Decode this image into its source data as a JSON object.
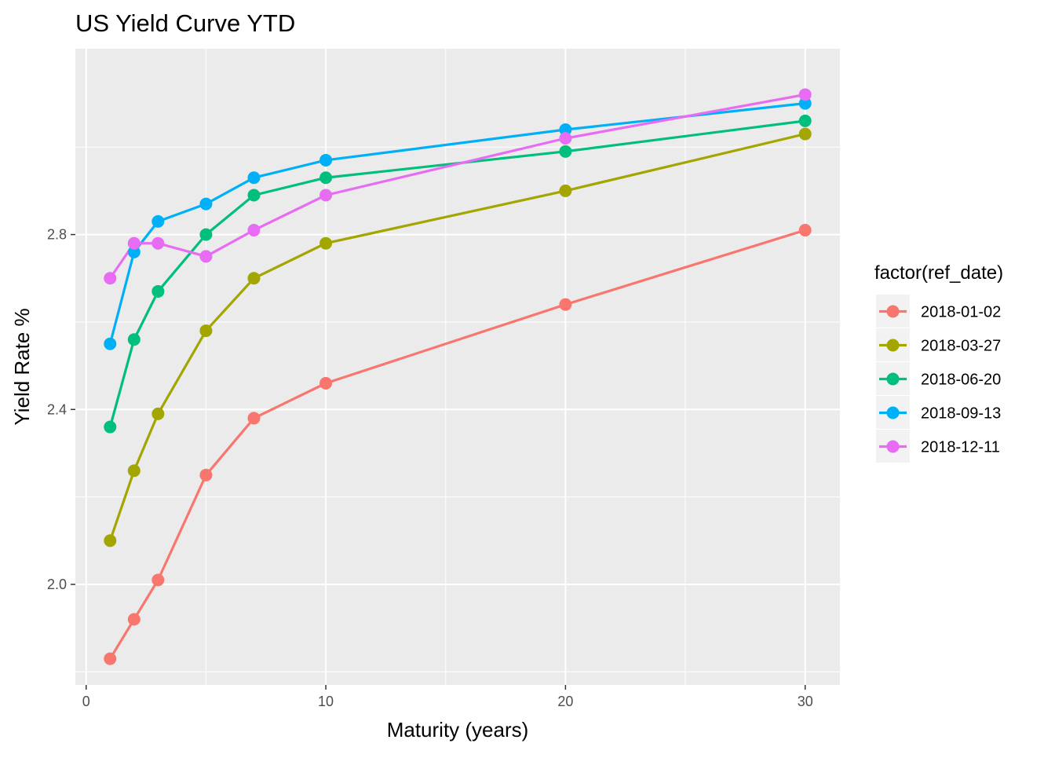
{
  "chart_data": {
    "type": "line",
    "title": "US Yield Curve YTD",
    "xlabel": "Maturity (years)",
    "ylabel": "Yield Rate %",
    "x": [
      1,
      2,
      3,
      5,
      7,
      10,
      20,
      30
    ],
    "xlim": [
      -0.45,
      31.45
    ],
    "ylim": [
      1.77,
      3.225
    ],
    "x_ticks": [
      0,
      10,
      20,
      30
    ],
    "x_tick_labels": [
      "0",
      "10",
      "20",
      "30"
    ],
    "y_ticks": [
      2.0,
      2.4,
      2.8
    ],
    "y_tick_labels": [
      "2.0",
      "2.4",
      "2.8"
    ],
    "grid": true,
    "legend": {
      "title": "factor(ref_date)",
      "position": "right"
    },
    "series": [
      {
        "name": "2018-01-02",
        "color": "#F8766D",
        "values": [
          1.83,
          1.92,
          2.01,
          2.25,
          2.38,
          2.46,
          2.64,
          2.81
        ]
      },
      {
        "name": "2018-03-27",
        "color": "#A3A500",
        "values": [
          2.1,
          2.26,
          2.39,
          2.58,
          2.7,
          2.78,
          2.9,
          3.03
        ]
      },
      {
        "name": "2018-06-20",
        "color": "#00BF7D",
        "values": [
          2.36,
          2.56,
          2.67,
          2.8,
          2.89,
          2.93,
          2.99,
          3.06
        ]
      },
      {
        "name": "2018-09-13",
        "color": "#00B0F6",
        "values": [
          2.55,
          2.76,
          2.83,
          2.87,
          2.93,
          2.97,
          3.04,
          3.1
        ]
      },
      {
        "name": "2018-12-11",
        "color": "#E76BF3",
        "values": [
          2.7,
          2.78,
          2.78,
          2.75,
          2.81,
          2.89,
          3.02,
          3.12
        ]
      }
    ]
  }
}
